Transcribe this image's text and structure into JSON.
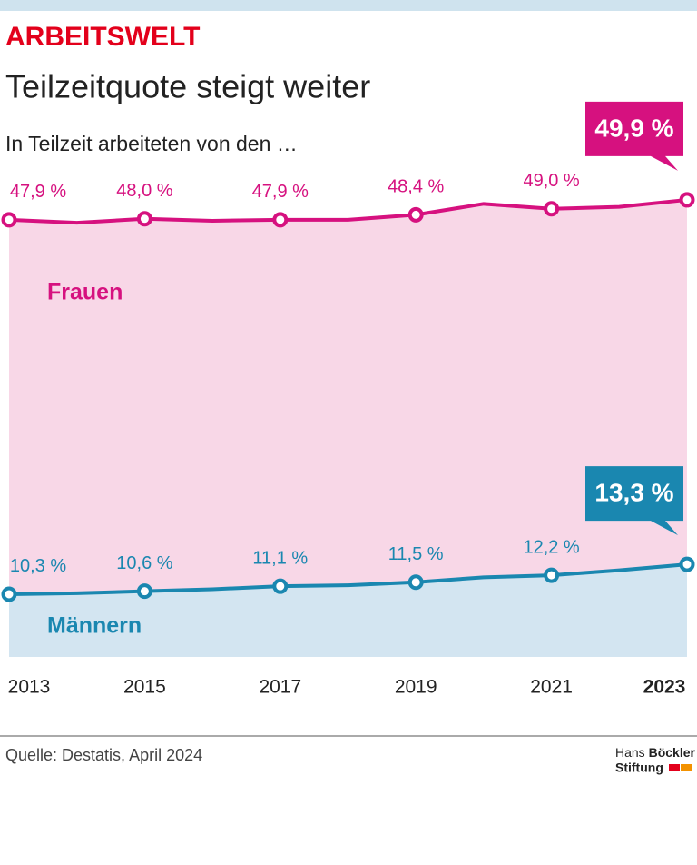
{
  "chart_data": {
    "type": "line",
    "section": "ARBEITSWELT",
    "title": "Teilzeitquote steigt weiter",
    "subtitle": "In Teilzeit arbeiteten von den …",
    "x": [
      2013,
      2014,
      2015,
      2016,
      2017,
      2018,
      2019,
      2020,
      2021,
      2022,
      2023
    ],
    "xlim": [
      2013,
      2023
    ],
    "xticks": [
      2013,
      2015,
      2017,
      2019,
      2021,
      2023
    ],
    "ylim": [
      4,
      54
    ],
    "series": [
      {
        "name": "Frauen",
        "color": "#d6117f",
        "fill": "#f8d7e7",
        "values": [
          47.9,
          47.6,
          48.0,
          47.8,
          47.9,
          47.9,
          48.4,
          49.5,
          49.0,
          49.2,
          49.9
        ],
        "value_labels": [
          "47,9 %",
          null,
          "48,0 %",
          null,
          "47,9 %",
          null,
          "48,4 %",
          null,
          "49,0 %",
          null,
          "49,9 %"
        ]
      },
      {
        "name": "Männern",
        "color": "#1a87b0",
        "fill": "#d3e5f1",
        "values": [
          10.3,
          10.4,
          10.6,
          10.8,
          11.1,
          11.2,
          11.5,
          12.0,
          12.2,
          12.7,
          13.3
        ],
        "value_labels": [
          "10,3 %",
          null,
          "10,6 %",
          null,
          "11,1 %",
          null,
          "11,5 %",
          null,
          "12,2 %",
          null,
          "13,3 %"
        ]
      }
    ],
    "source": "Quelle: Destatis, April 2024",
    "logo": [
      "Hans",
      "Böckler",
      "Stiftung"
    ]
  }
}
